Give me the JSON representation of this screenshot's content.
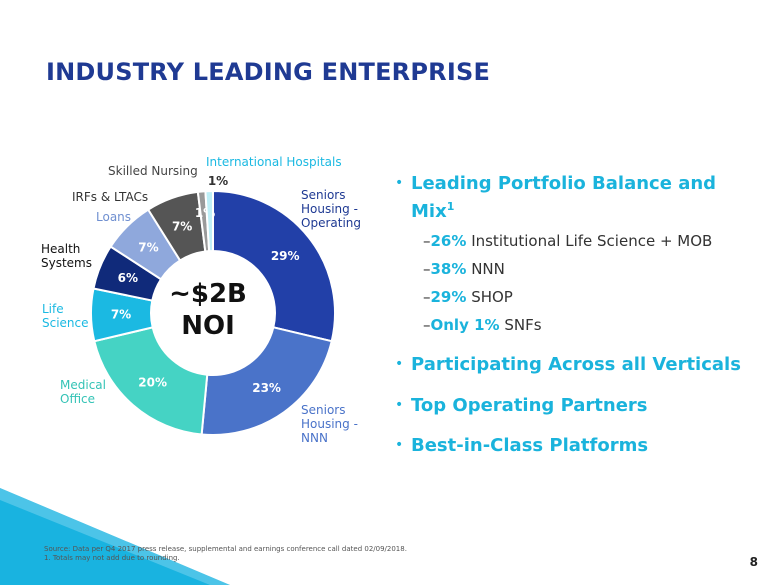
{
  "title": "INDUSTRY LEADING ENTERPRISE",
  "center": {
    "line1": "~$2B",
    "line2": "NOI"
  },
  "chart_data": {
    "type": "pie",
    "donut": true,
    "categories": [
      "Seniors Housing - Operating",
      "Seniors Housing - NNN",
      "Medical Office",
      "Life Science",
      "Health Systems",
      "Loans",
      "IRFs & LTACs",
      "Skilled Nursing",
      "International Hospitals"
    ],
    "values": [
      29,
      23,
      20,
      7,
      6,
      7,
      7,
      1,
      1
    ],
    "value_labels": [
      "29%",
      "23%",
      "20%",
      "7%",
      "6%",
      "7%",
      "7%",
      "1%",
      "1%"
    ],
    "colors": [
      "#2240a8",
      "#4a73c9",
      "#45d3c4",
      "#1bb9e2",
      "#102a7a",
      "#8fa8dc",
      "#555555",
      "#9a9a9a",
      "#bfeff7"
    ]
  },
  "labels": {
    "seniors_op": [
      "Seniors",
      "Housing -",
      "Operating"
    ],
    "seniors_nnn": [
      "Seniors",
      "Housing -",
      "NNN"
    ],
    "medical_office": [
      "Medical",
      "Office"
    ],
    "life_science": [
      "Life",
      "Science"
    ],
    "health_systems": [
      "Health",
      "Systems"
    ],
    "loans": "Loans",
    "irfs": "IRFs & LTACs",
    "skilled_nursing": "Skilled Nursing",
    "intl_hospitals": "International Hospitals"
  },
  "bullets": {
    "b1_title": "Leading Portfolio Balance and",
    "b1_title2": "Mix",
    "b1_sup": "1",
    "subs": [
      {
        "pct": "26%",
        "text": "Institutional Life Science + MOB"
      },
      {
        "pct": "38%",
        "text": "NNN"
      },
      {
        "pct": "29%",
        "text": "SHOP"
      },
      {
        "pct": "Only 1%",
        "text": "SNFs"
      }
    ],
    "b2": "Participating Across all Verticals",
    "b3": "Top Operating Partners",
    "b4": "Best-in-Class Platforms"
  },
  "footnote": [
    "Source: Data per Q4 2017 press release, supplemental and earnings conference call dated 02/09/2018.",
    "1.  Totals may not add due to rounding."
  ],
  "page_number": "8"
}
